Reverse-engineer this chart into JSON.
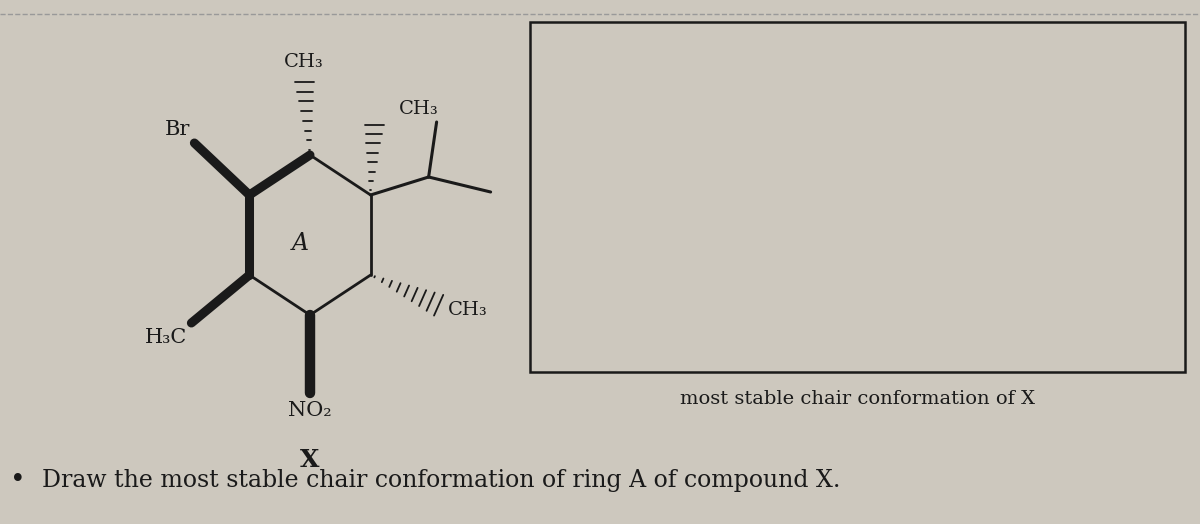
{
  "bg_color": "#cdc8be",
  "line_color": "#1a1a1a",
  "label_Br": "Br",
  "label_H3C": "H₃C",
  "label_NO2": "NO₂",
  "label_CH3_top": "CH₃",
  "label_CH3_topright": "CH₃",
  "label_CH3_right": "CH₃",
  "ring_label": "A",
  "compound_label": "X",
  "title_text": "most stable chair conformation of X",
  "question_text": "Draw the most stable chair conformation of ring A of compound X.",
  "font_size_labels": 14,
  "font_size_title": 13,
  "font_size_question": 17,
  "font_size_ring": 15
}
